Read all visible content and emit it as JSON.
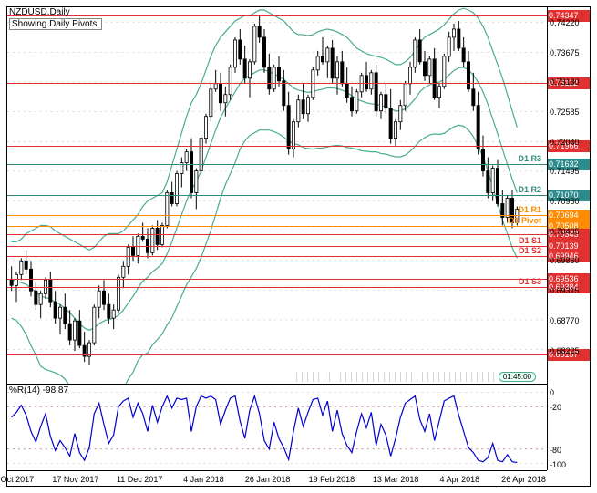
{
  "title": "NZDUSD,Daily",
  "subtitle": "Showing Daily Pivots.",
  "sub_indicator_label": "%R(14) -98.87",
  "time_remaining": "01:45:00",
  "colors": {
    "red": "#e03030",
    "teal": "#2e8b7a",
    "orange": "#ff8c00",
    "bb": "#4aad8a",
    "wpr": "#0000cc",
    "tag_red": "#e03030",
    "tag_teal": "#2e8b8b",
    "tag_orange": "#ff8c00"
  },
  "main_y": {
    "min": 0.676,
    "max": 0.745,
    "ticks": [
      0.7422,
      0.73675,
      0.7313,
      0.72585,
      0.7204,
      0.71495,
      0.7095,
      0.70405,
      0.6986,
      0.69315,
      0.6877,
      0.68225
    ]
  },
  "sub_y": {
    "min": -110,
    "max": 10,
    "ticks": [
      0,
      -20,
      -80,
      -100
    ]
  },
  "x_labels": [
    "26 Oct 2017",
    "17 Nov 2017",
    "11 Dec 2017",
    "4 Jan 2018",
    "26 Jan 2018",
    "19 Feb 2018",
    "13 Mar 2018",
    "4 Apr 2018",
    "26 Apr 2018"
  ],
  "hlines": [
    {
      "price": 0.74347,
      "color": "red",
      "tag": "0.74347"
    },
    {
      "price": 0.73112,
      "color": "red",
      "tag": "0.73112"
    },
    {
      "price": 0.71966,
      "color": "red",
      "tag": "0.71966"
    },
    {
      "price": 0.71632,
      "color": "teal",
      "tag": "0.71632",
      "label": "D1 R3"
    },
    {
      "price": 0.7107,
      "color": "teal",
      "tag": "0.71070",
      "label": "D1 R2"
    },
    {
      "price": 0.70694,
      "color": "orange",
      "tag": "0.70694",
      "label": "D1 R1"
    },
    {
      "price": 0.70508,
      "color": "orange",
      "tag": "0.70508",
      "label": "D1 Pivot"
    },
    {
      "price": 0.70343,
      "color": "red",
      "tag": "0.70343"
    },
    {
      "price": 0.70139,
      "color": "red",
      "tag": "0.70139",
      "label": "D1 S1"
    },
    {
      "price": 0.69946,
      "color": "red",
      "tag": "0.69946",
      "label": "D1 S2"
    },
    {
      "price": 0.69536,
      "color": "red",
      "tag": "0.69536"
    },
    {
      "price": 0.69384,
      "color": "red",
      "tag": "0.69384",
      "label": "D1 S3"
    },
    {
      "price": 0.68157,
      "color": "red",
      "tag": "0.68157"
    }
  ],
  "candles": [
    {
      "t": 0,
      "o": 0.695,
      "h": 0.6975,
      "l": 0.693,
      "c": 0.694
    },
    {
      "t": 1,
      "o": 0.694,
      "h": 0.6965,
      "l": 0.691,
      "c": 0.696
    },
    {
      "t": 2,
      "o": 0.696,
      "h": 0.699,
      "l": 0.695,
      "c": 0.6985
    },
    {
      "t": 3,
      "o": 0.6985,
      "h": 0.7005,
      "l": 0.696,
      "c": 0.697
    },
    {
      "t": 4,
      "o": 0.697,
      "h": 0.6985,
      "l": 0.692,
      "c": 0.693
    },
    {
      "t": 5,
      "o": 0.693,
      "h": 0.6945,
      "l": 0.6895,
      "c": 0.6905
    },
    {
      "t": 6,
      "o": 0.6905,
      "h": 0.693,
      "l": 0.688,
      "c": 0.6925
    },
    {
      "t": 7,
      "o": 0.6925,
      "h": 0.6955,
      "l": 0.6915,
      "c": 0.695
    },
    {
      "t": 8,
      "o": 0.695,
      "h": 0.6965,
      "l": 0.69,
      "c": 0.691
    },
    {
      "t": 9,
      "o": 0.691,
      "h": 0.693,
      "l": 0.687,
      "c": 0.688
    },
    {
      "t": 10,
      "o": 0.688,
      "h": 0.6905,
      "l": 0.685,
      "c": 0.69
    },
    {
      "t": 11,
      "o": 0.69,
      "h": 0.6925,
      "l": 0.686,
      "c": 0.687
    },
    {
      "t": 12,
      "o": 0.687,
      "h": 0.6895,
      "l": 0.683,
      "c": 0.684
    },
    {
      "t": 13,
      "o": 0.684,
      "h": 0.688,
      "l": 0.682,
      "c": 0.6875
    },
    {
      "t": 14,
      "o": 0.6875,
      "h": 0.6895,
      "l": 0.6825,
      "c": 0.683
    },
    {
      "t": 15,
      "o": 0.683,
      "h": 0.6855,
      "l": 0.68,
      "c": 0.681
    },
    {
      "t": 16,
      "o": 0.681,
      "h": 0.684,
      "l": 0.6795,
      "c": 0.6835
    },
    {
      "t": 17,
      "o": 0.6835,
      "h": 0.6905,
      "l": 0.683,
      "c": 0.69
    },
    {
      "t": 18,
      "o": 0.69,
      "h": 0.694,
      "l": 0.688,
      "c": 0.693
    },
    {
      "t": 19,
      "o": 0.693,
      "h": 0.695,
      "l": 0.6895,
      "c": 0.6905
    },
    {
      "t": 20,
      "o": 0.6905,
      "h": 0.6925,
      "l": 0.687,
      "c": 0.688
    },
    {
      "t": 21,
      "o": 0.688,
      "h": 0.6905,
      "l": 0.686,
      "c": 0.6895
    },
    {
      "t": 22,
      "o": 0.6895,
      "h": 0.696,
      "l": 0.689,
      "c": 0.6955
    },
    {
      "t": 23,
      "o": 0.6955,
      "h": 0.6985,
      "l": 0.6935,
      "c": 0.6975
    },
    {
      "t": 24,
      "o": 0.6975,
      "h": 0.7015,
      "l": 0.696,
      "c": 0.701
    },
    {
      "t": 25,
      "o": 0.701,
      "h": 0.703,
      "l": 0.6985,
      "c": 0.6995
    },
    {
      "t": 26,
      "o": 0.6995,
      "h": 0.7035,
      "l": 0.698,
      "c": 0.703
    },
    {
      "t": 27,
      "o": 0.703,
      "h": 0.7055,
      "l": 0.702,
      "c": 0.7025
    },
    {
      "t": 28,
      "o": 0.7025,
      "h": 0.7045,
      "l": 0.699,
      "c": 0.7
    },
    {
      "t": 29,
      "o": 0.7,
      "h": 0.705,
      "l": 0.6995,
      "c": 0.7045
    },
    {
      "t": 30,
      "o": 0.7045,
      "h": 0.706,
      "l": 0.7005,
      "c": 0.7015
    },
    {
      "t": 31,
      "o": 0.7015,
      "h": 0.7055,
      "l": 0.701,
      "c": 0.705
    },
    {
      "t": 32,
      "o": 0.705,
      "h": 0.7115,
      "l": 0.7045,
      "c": 0.711
    },
    {
      "t": 33,
      "o": 0.711,
      "h": 0.713,
      "l": 0.7085,
      "c": 0.709
    },
    {
      "t": 34,
      "o": 0.709,
      "h": 0.715,
      "l": 0.7085,
      "c": 0.7145
    },
    {
      "t": 35,
      "o": 0.7145,
      "h": 0.7175,
      "l": 0.712,
      "c": 0.7165
    },
    {
      "t": 36,
      "o": 0.7165,
      "h": 0.719,
      "l": 0.715,
      "c": 0.7185
    },
    {
      "t": 37,
      "o": 0.7185,
      "h": 0.721,
      "l": 0.71,
      "c": 0.711
    },
    {
      "t": 38,
      "o": 0.711,
      "h": 0.7155,
      "l": 0.708,
      "c": 0.715
    },
    {
      "t": 39,
      "o": 0.715,
      "h": 0.7215,
      "l": 0.7145,
      "c": 0.721
    },
    {
      "t": 40,
      "o": 0.721,
      "h": 0.7255,
      "l": 0.72,
      "c": 0.725
    },
    {
      "t": 41,
      "o": 0.725,
      "h": 0.731,
      "l": 0.724,
      "c": 0.73
    },
    {
      "t": 42,
      "o": 0.73,
      "h": 0.7335,
      "l": 0.7295,
      "c": 0.731
    },
    {
      "t": 43,
      "o": 0.731,
      "h": 0.733,
      "l": 0.726,
      "c": 0.7275
    },
    {
      "t": 44,
      "o": 0.7275,
      "h": 0.7305,
      "l": 0.725,
      "c": 0.729
    },
    {
      "t": 45,
      "o": 0.729,
      "h": 0.7345,
      "l": 0.728,
      "c": 0.734
    },
    {
      "t": 46,
      "o": 0.734,
      "h": 0.7395,
      "l": 0.733,
      "c": 0.739
    },
    {
      "t": 47,
      "o": 0.739,
      "h": 0.741,
      "l": 0.7345,
      "c": 0.7355
    },
    {
      "t": 48,
      "o": 0.7355,
      "h": 0.738,
      "l": 0.731,
      "c": 0.732
    },
    {
      "t": 49,
      "o": 0.732,
      "h": 0.7355,
      "l": 0.7285,
      "c": 0.735
    },
    {
      "t": 50,
      "o": 0.735,
      "h": 0.742,
      "l": 0.7345,
      "c": 0.7415
    },
    {
      "t": 51,
      "o": 0.7415,
      "h": 0.7436,
      "l": 0.7385,
      "c": 0.7395
    },
    {
      "t": 52,
      "o": 0.7395,
      "h": 0.741,
      "l": 0.733,
      "c": 0.734
    },
    {
      "t": 53,
      "o": 0.734,
      "h": 0.7365,
      "l": 0.729,
      "c": 0.73
    },
    {
      "t": 54,
      "o": 0.73,
      "h": 0.7345,
      "l": 0.7295,
      "c": 0.734
    },
    {
      "t": 55,
      "o": 0.734,
      "h": 0.736,
      "l": 0.7305,
      "c": 0.7315
    },
    {
      "t": 56,
      "o": 0.7315,
      "h": 0.7335,
      "l": 0.726,
      "c": 0.727
    },
    {
      "t": 57,
      "o": 0.727,
      "h": 0.7295,
      "l": 0.718,
      "c": 0.719
    },
    {
      "t": 58,
      "o": 0.719,
      "h": 0.7245,
      "l": 0.7175,
      "c": 0.724
    },
    {
      "t": 59,
      "o": 0.724,
      "h": 0.729,
      "l": 0.723,
      "c": 0.728
    },
    {
      "t": 60,
      "o": 0.728,
      "h": 0.731,
      "l": 0.7245,
      "c": 0.7255
    },
    {
      "t": 61,
      "o": 0.7255,
      "h": 0.729,
      "l": 0.724,
      "c": 0.7285
    },
    {
      "t": 62,
      "o": 0.7285,
      "h": 0.734,
      "l": 0.728,
      "c": 0.7335
    },
    {
      "t": 63,
      "o": 0.7335,
      "h": 0.737,
      "l": 0.7325,
      "c": 0.736
    },
    {
      "t": 64,
      "o": 0.736,
      "h": 0.7395,
      "l": 0.7345,
      "c": 0.735
    },
    {
      "t": 65,
      "o": 0.735,
      "h": 0.738,
      "l": 0.732,
      "c": 0.7375
    },
    {
      "t": 66,
      "o": 0.7375,
      "h": 0.739,
      "l": 0.731,
      "c": 0.732
    },
    {
      "t": 67,
      "o": 0.732,
      "h": 0.736,
      "l": 0.729,
      "c": 0.735
    },
    {
      "t": 68,
      "o": 0.735,
      "h": 0.737,
      "l": 0.7305,
      "c": 0.731
    },
    {
      "t": 69,
      "o": 0.731,
      "h": 0.734,
      "l": 0.7275,
      "c": 0.7285
    },
    {
      "t": 70,
      "o": 0.7285,
      "h": 0.7305,
      "l": 0.725,
      "c": 0.726
    },
    {
      "t": 71,
      "o": 0.726,
      "h": 0.73,
      "l": 0.7255,
      "c": 0.7295
    },
    {
      "t": 72,
      "o": 0.7295,
      "h": 0.733,
      "l": 0.7285,
      "c": 0.7325
    },
    {
      "t": 73,
      "o": 0.7325,
      "h": 0.735,
      "l": 0.7295,
      "c": 0.73
    },
    {
      "t": 74,
      "o": 0.73,
      "h": 0.7335,
      "l": 0.729,
      "c": 0.733
    },
    {
      "t": 75,
      "o": 0.733,
      "h": 0.7345,
      "l": 0.725,
      "c": 0.726
    },
    {
      "t": 76,
      "o": 0.726,
      "h": 0.7295,
      "l": 0.7245,
      "c": 0.729
    },
    {
      "t": 77,
      "o": 0.729,
      "h": 0.731,
      "l": 0.7255,
      "c": 0.7265
    },
    {
      "t": 78,
      "o": 0.7265,
      "h": 0.73,
      "l": 0.72,
      "c": 0.721
    },
    {
      "t": 79,
      "o": 0.721,
      "h": 0.7245,
      "l": 0.7195,
      "c": 0.724
    },
    {
      "t": 80,
      "o": 0.724,
      "h": 0.728,
      "l": 0.7225,
      "c": 0.727
    },
    {
      "t": 81,
      "o": 0.727,
      "h": 0.7315,
      "l": 0.726,
      "c": 0.731
    },
    {
      "t": 82,
      "o": 0.731,
      "h": 0.735,
      "l": 0.729,
      "c": 0.734
    },
    {
      "t": 83,
      "o": 0.734,
      "h": 0.7395,
      "l": 0.733,
      "c": 0.739
    },
    {
      "t": 84,
      "o": 0.739,
      "h": 0.741,
      "l": 0.7345,
      "c": 0.735
    },
    {
      "t": 85,
      "o": 0.735,
      "h": 0.737,
      "l": 0.7315,
      "c": 0.7325
    },
    {
      "t": 86,
      "o": 0.7325,
      "h": 0.736,
      "l": 0.731,
      "c": 0.7355
    },
    {
      "t": 87,
      "o": 0.7355,
      "h": 0.7375,
      "l": 0.728,
      "c": 0.7285
    },
    {
      "t": 88,
      "o": 0.7285,
      "h": 0.731,
      "l": 0.7265,
      "c": 0.7305
    },
    {
      "t": 89,
      "o": 0.7305,
      "h": 0.7365,
      "l": 0.73,
      "c": 0.736
    },
    {
      "t": 90,
      "o": 0.736,
      "h": 0.7405,
      "l": 0.735,
      "c": 0.7395
    },
    {
      "t": 91,
      "o": 0.7395,
      "h": 0.742,
      "l": 0.737,
      "c": 0.741
    },
    {
      "t": 92,
      "o": 0.741,
      "h": 0.7425,
      "l": 0.737,
      "c": 0.7375
    },
    {
      "t": 93,
      "o": 0.7375,
      "h": 0.7395,
      "l": 0.734,
      "c": 0.735
    },
    {
      "t": 94,
      "o": 0.735,
      "h": 0.737,
      "l": 0.7295,
      "c": 0.73
    },
    {
      "t": 95,
      "o": 0.73,
      "h": 0.733,
      "l": 0.726,
      "c": 0.727
    },
    {
      "t": 96,
      "o": 0.727,
      "h": 0.7295,
      "l": 0.718,
      "c": 0.719
    },
    {
      "t": 97,
      "o": 0.719,
      "h": 0.7215,
      "l": 0.714,
      "c": 0.715
    },
    {
      "t": 98,
      "o": 0.715,
      "h": 0.7175,
      "l": 0.71,
      "c": 0.711
    },
    {
      "t": 99,
      "o": 0.711,
      "h": 0.716,
      "l": 0.7095,
      "c": 0.7155
    },
    {
      "t": 100,
      "o": 0.7155,
      "h": 0.717,
      "l": 0.7085,
      "c": 0.709
    },
    {
      "t": 101,
      "o": 0.709,
      "h": 0.7115,
      "l": 0.705,
      "c": 0.7065
    },
    {
      "t": 102,
      "o": 0.7065,
      "h": 0.7105,
      "l": 0.7055,
      "c": 0.71
    },
    {
      "t": 103,
      "o": 0.71,
      "h": 0.7115,
      "l": 0.7045,
      "c": 0.7055
    },
    {
      "t": 104,
      "o": 0.7055,
      "h": 0.7085,
      "l": 0.705,
      "c": 0.708
    }
  ],
  "bb_upper": [
    0.702,
    0.702,
    0.7025,
    0.7035,
    0.704,
    0.7045,
    0.705,
    0.705,
    0.7048,
    0.704,
    0.7035,
    0.703,
    0.7025,
    0.702,
    0.7015,
    0.701,
    0.7005,
    0.701,
    0.702,
    0.703,
    0.7035,
    0.7035,
    0.7035,
    0.704,
    0.705,
    0.706,
    0.707,
    0.7085,
    0.7095,
    0.71,
    0.7105,
    0.711,
    0.713,
    0.716,
    0.719,
    0.722,
    0.725,
    0.7275,
    0.729,
    0.731,
    0.7335,
    0.736,
    0.738,
    0.7395,
    0.7405,
    0.7415,
    0.7425,
    0.743,
    0.7435,
    0.7435,
    0.744,
    0.7445,
    0.7445,
    0.744,
    0.7435,
    0.743,
    0.7425,
    0.7415,
    0.7405,
    0.74,
    0.74,
    0.7398,
    0.74,
    0.7405,
    0.7408,
    0.741,
    0.7408,
    0.7405,
    0.74,
    0.7395,
    0.7385,
    0.7375,
    0.737,
    0.7365,
    0.7362,
    0.736,
    0.7358,
    0.7355,
    0.735,
    0.7345,
    0.7345,
    0.735,
    0.7358,
    0.737,
    0.7385,
    0.7395,
    0.74,
    0.7405,
    0.741,
    0.7418,
    0.7428,
    0.7438,
    0.7445,
    0.7448,
    0.7445,
    0.744,
    0.743,
    0.7415,
    0.7395,
    0.737,
    0.7345,
    0.732,
    0.729,
    0.726,
    0.723
  ],
  "bb_mid": [
    0.695,
    0.6948,
    0.6945,
    0.6942,
    0.6935,
    0.6928,
    0.692,
    0.6918,
    0.6915,
    0.691,
    0.6905,
    0.6898,
    0.689,
    0.688,
    0.687,
    0.6862,
    0.6858,
    0.6862,
    0.687,
    0.6875,
    0.6878,
    0.688,
    0.6885,
    0.6895,
    0.6908,
    0.692,
    0.6935,
    0.6948,
    0.6955,
    0.6965,
    0.6972,
    0.698,
    0.6998,
    0.702,
    0.7045,
    0.707,
    0.7095,
    0.7115,
    0.713,
    0.715,
    0.7175,
    0.72,
    0.7225,
    0.7248,
    0.7265,
    0.728,
    0.7295,
    0.731,
    0.732,
    0.7325,
    0.733,
    0.7335,
    0.7335,
    0.7332,
    0.7328,
    0.7323,
    0.7318,
    0.731,
    0.7302,
    0.7298,
    0.7296,
    0.7294,
    0.7295,
    0.7298,
    0.73,
    0.7302,
    0.7302,
    0.7301,
    0.7298,
    0.7294,
    0.7288,
    0.7282,
    0.7278,
    0.7275,
    0.7273,
    0.7272,
    0.727,
    0.7268,
    0.7264,
    0.726,
    0.726,
    0.7264,
    0.7272,
    0.7282,
    0.7295,
    0.7303,
    0.7308,
    0.7311,
    0.7313,
    0.7318,
    0.7326,
    0.7334,
    0.7339,
    0.734,
    0.7335,
    0.7326,
    0.7312,
    0.7295,
    0.7272,
    0.7245,
    0.7218,
    0.719,
    0.7162,
    0.7135,
    0.711
  ],
  "bb_lower": [
    0.688,
    0.6876,
    0.6865,
    0.685,
    0.683,
    0.6812,
    0.6792,
    0.6786,
    0.6783,
    0.678,
    0.6776,
    0.6768,
    0.6756,
    0.6741,
    0.6726,
    0.6715,
    0.6712,
    0.6716,
    0.6721,
    0.6721,
    0.6722,
    0.6726,
    0.6736,
    0.6751,
    0.6768,
    0.6781,
    0.6802,
    0.6813,
    0.6816,
    0.6831,
    0.6841,
    0.6851,
    0.6868,
    0.6881,
    0.6901,
    0.6921,
    0.6941,
    0.6956,
    0.6971,
    0.6991,
    0.7016,
    0.7041,
    0.707,
    0.71,
    0.7125,
    0.7145,
    0.7165,
    0.719,
    0.7205,
    0.7215,
    0.722,
    0.7225,
    0.7225,
    0.7225,
    0.7222,
    0.7218,
    0.7212,
    0.7205,
    0.72,
    0.7198,
    0.7193,
    0.7191,
    0.719,
    0.7192,
    0.7192,
    0.7194,
    0.7196,
    0.7197,
    0.7196,
    0.7193,
    0.7192,
    0.719,
    0.7187,
    0.7186,
    0.7185,
    0.7185,
    0.7182,
    0.7181,
    0.7178,
    0.7176,
    0.7176,
    0.7179,
    0.7186,
    0.7195,
    0.7205,
    0.7211,
    0.7216,
    0.7218,
    0.7217,
    0.7219,
    0.7225,
    0.7231,
    0.7234,
    0.7232,
    0.7225,
    0.7213,
    0.7195,
    0.7176,
    0.715,
    0.712,
    0.709,
    0.706,
    0.7035,
    0.701,
    0.699
  ],
  "wpr": [
    -35,
    -28,
    -18,
    -32,
    -55,
    -70,
    -48,
    -30,
    -62,
    -82,
    -68,
    -78,
    -90,
    -58,
    -85,
    -96,
    -78,
    -30,
    -15,
    -45,
    -72,
    -60,
    -20,
    -12,
    -8,
    -35,
    -15,
    -30,
    -55,
    -18,
    -42,
    -20,
    -5,
    -22,
    -8,
    -10,
    -8,
    -55,
    -20,
    -5,
    -8,
    -5,
    -10,
    -45,
    -25,
    -8,
    -5,
    -40,
    -65,
    -25,
    -5,
    -30,
    -68,
    -80,
    -42,
    -65,
    -78,
    -95,
    -55,
    -22,
    -48,
    -28,
    -10,
    -8,
    -32,
    -12,
    -55,
    -25,
    -58,
    -75,
    -85,
    -55,
    -30,
    -50,
    -28,
    -75,
    -45,
    -60,
    -90,
    -65,
    -35,
    -15,
    -10,
    -5,
    -38,
    -55,
    -30,
    -68,
    -40,
    -12,
    -8,
    -5,
    -32,
    -55,
    -78,
    -85,
    -96,
    -98,
    -92,
    -72,
    -96,
    -98,
    -88,
    -98,
    -99
  ]
}
